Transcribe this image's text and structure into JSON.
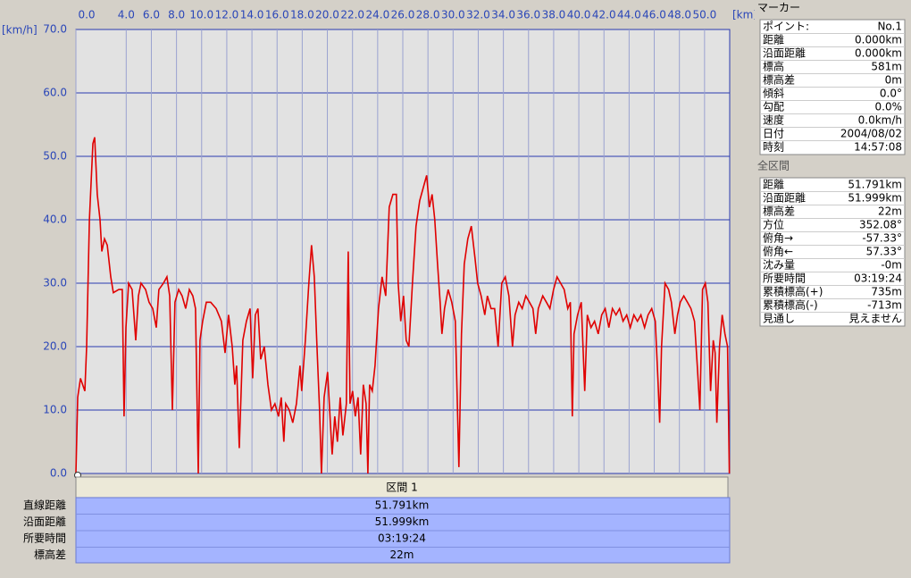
{
  "chart_data": {
    "type": "line",
    "x_label": "[km]",
    "y_label": "[km/h]",
    "color": "#e00000",
    "xlim": [
      0,
      52
    ],
    "ylim": [
      0,
      70
    ],
    "grid": true,
    "xticks": [
      {
        "value": 0,
        "label": "0.0"
      },
      {
        "value": 4,
        "label": "4.0"
      },
      {
        "value": 6,
        "label": "6.0"
      },
      {
        "value": 8,
        "label": "8.0"
      },
      {
        "value": 10,
        "label": "10.0"
      },
      {
        "value": 12,
        "label": "12.0"
      },
      {
        "value": 14,
        "label": "14.0"
      },
      {
        "value": 16,
        "label": "16.0"
      },
      {
        "value": 18,
        "label": "18.0"
      },
      {
        "value": 20,
        "label": "20.0"
      },
      {
        "value": 22,
        "label": "22.0"
      },
      {
        "value": 24,
        "label": "24.0"
      },
      {
        "value": 26,
        "label": "26.0"
      },
      {
        "value": 28,
        "label": "28.0"
      },
      {
        "value": 30,
        "label": "30.0"
      },
      {
        "value": 32,
        "label": "32.0"
      },
      {
        "value": 34,
        "label": "34.0"
      },
      {
        "value": 36,
        "label": "36.0"
      },
      {
        "value": 38,
        "label": "38.0"
      },
      {
        "value": 40,
        "label": "40.0"
      },
      {
        "value": 42,
        "label": "42.0"
      },
      {
        "value": 44,
        "label": "44.0"
      },
      {
        "value": 46,
        "label": "46.0"
      },
      {
        "value": 48,
        "label": "48.0"
      },
      {
        "value": 50,
        "label": "50.0"
      }
    ],
    "yticks": [
      {
        "value": 0,
        "label": "0.0"
      },
      {
        "value": 10,
        "label": "10.0"
      },
      {
        "value": 20,
        "label": "20.0"
      },
      {
        "value": 30,
        "label": "30.0"
      },
      {
        "value": 40,
        "label": "40.0"
      },
      {
        "value": 50,
        "label": "50.0"
      },
      {
        "value": 60,
        "label": "60.0"
      },
      {
        "value": 70,
        "label": "70.0"
      }
    ],
    "x": [
      0,
      0.14,
      0.36,
      0.71,
      0.85,
      1.07,
      1.35,
      1.49,
      1.7,
      1.92,
      2.06,
      2.27,
      2.49,
      2.77,
      2.98,
      3.41,
      3.69,
      3.83,
      3.98,
      4.19,
      4.47,
      4.76,
      4.97,
      5.18,
      5.54,
      5.82,
      6.11,
      6.39,
      6.6,
      6.96,
      7.24,
      7.46,
      7.67,
      7.88,
      8.17,
      8.45,
      8.73,
      9.02,
      9.3,
      9.51,
      9.73,
      9.87,
      10.08,
      10.37,
      10.72,
      11.15,
      11.57,
      11.86,
      12.14,
      12.43,
      12.64,
      12.78,
      12.99,
      13.28,
      13.56,
      13.85,
      14.06,
      14.27,
      14.48,
      14.7,
      14.98,
      15.27,
      15.55,
      15.83,
      16.12,
      16.33,
      16.54,
      16.69,
      16.97,
      17.25,
      17.54,
      17.82,
      17.96,
      18.25,
      18.53,
      18.74,
      18.96,
      19.17,
      19.38,
      19.53,
      19.74,
      20.02,
      20.24,
      20.38,
      20.59,
      20.8,
      21.02,
      21.23,
      21.51,
      21.66,
      21.8,
      22.01,
      22.22,
      22.44,
      22.65,
      22.86,
      23.08,
      23.22,
      23.36,
      23.57,
      23.79,
      24.07,
      24.35,
      24.64,
      24.92,
      25.21,
      25.49,
      25.63,
      25.84,
      26.06,
      26.27,
      26.48,
      26.77,
      27.05,
      27.34,
      27.62,
      27.9,
      28.12,
      28.33,
      28.54,
      28.76,
      28.97,
      29.11,
      29.32,
      29.61,
      29.89,
      30.18,
      30.46,
      30.67,
      30.89,
      31.17,
      31.45,
      31.74,
      31.95,
      32.23,
      32.52,
      32.73,
      33.02,
      33.3,
      33.58,
      33.87,
      34.15,
      34.44,
      34.72,
      34.93,
      35.22,
      35.5,
      35.78,
      36.07,
      36.35,
      36.57,
      36.78,
      37.13,
      37.42,
      37.7,
      37.99,
      38.27,
      38.55,
      38.84,
      39.12,
      39.33,
      39.48,
      39.62,
      39.9,
      40.19,
      40.47,
      40.68,
      40.97,
      41.25,
      41.54,
      41.82,
      42.1,
      42.39,
      42.67,
      42.96,
      43.24,
      43.52,
      43.81,
      44.09,
      44.38,
      44.66,
      44.94,
      45.23,
      45.51,
      45.8,
      46.08,
      46.29,
      46.43,
      46.58,
      46.86,
      47.14,
      47.36,
      47.64,
      47.85,
      48.07,
      48.35,
      48.64,
      48.92,
      49.2,
      49.42,
      49.63,
      49.84,
      50.06,
      50.27,
      50.48,
      50.69,
      50.84,
      50.98,
      51.19,
      51.4,
      51.62,
      51.83,
      51.97
    ],
    "values": [
      0,
      12,
      15,
      13,
      20,
      40,
      52,
      53,
      44,
      40,
      35,
      37,
      36,
      31,
      28.5,
      29,
      29,
      9,
      23,
      30,
      29,
      21,
      28,
      30,
      29,
      27,
      26,
      23,
      29,
      30,
      31,
      28,
      10,
      27,
      29,
      28,
      26,
      29,
      28,
      26,
      0,
      21,
      24,
      27,
      27,
      26,
      24,
      19,
      25,
      20,
      14,
      17,
      4,
      21,
      24,
      26,
      15,
      25,
      26,
      18,
      20,
      14,
      10,
      11,
      9,
      12,
      5,
      11,
      10,
      8,
      11,
      17,
      13,
      21,
      30,
      36,
      31,
      20,
      10,
      0,
      12,
      16,
      8,
      3,
      9,
      5,
      12,
      6,
      11,
      35,
      11,
      13,
      9,
      12,
      3,
      14,
      11,
      0,
      14,
      13,
      17,
      26,
      31,
      28,
      42,
      44,
      44,
      30,
      24,
      28,
      21,
      20,
      30,
      39,
      43,
      45,
      47,
      42,
      44,
      40,
      33,
      27,
      22,
      26,
      29,
      27,
      24,
      1,
      22,
      33,
      37,
      39,
      34,
      30,
      28,
      25,
      28,
      26,
      26,
      20,
      30,
      31,
      28,
      20,
      25,
      27,
      26,
      28,
      27,
      26,
      22,
      26,
      28,
      27,
      26,
      29,
      31,
      30,
      29,
      26,
      27,
      9,
      22,
      25,
      27,
      13,
      25,
      23,
      24,
      22,
      25,
      26,
      23,
      26,
      25,
      26,
      24,
      25,
      23,
      25,
      24,
      25,
      23,
      25,
      26,
      24,
      15,
      8,
      20,
      30,
      29,
      27,
      22,
      25,
      27,
      28,
      27,
      26,
      24,
      17,
      10,
      29,
      30,
      27,
      13,
      21,
      19,
      8,
      20,
      25,
      22,
      20,
      0
    ]
  },
  "section_table": {
    "header": "区間 1",
    "rows": [
      [
        "直線距離",
        "51.791km"
      ],
      [
        "沿面距離",
        "51.999km"
      ],
      [
        "所要時間",
        "03:19:24"
      ],
      [
        "標高差",
        "22m"
      ]
    ]
  },
  "marker_panel": {
    "title": "マーカー",
    "rows": [
      [
        "ポイント:",
        "No.1"
      ],
      [
        "距離",
        "0.000km"
      ],
      [
        "沿面距離",
        "0.000km"
      ],
      [
        "標高",
        "581m"
      ],
      [
        "標高差",
        "0m"
      ],
      [
        "傾斜",
        "0.0°"
      ],
      [
        "勾配",
        "0.0%"
      ],
      [
        "速度",
        "0.0km/h"
      ],
      [
        "日付",
        "2004/08/02"
      ],
      [
        "時刻",
        "14:57:08"
      ]
    ]
  },
  "total_panel": {
    "title": "全区間",
    "rows": [
      [
        "距離",
        "51.791km"
      ],
      [
        "沿面距離",
        "51.999km"
      ],
      [
        "標高差",
        "22m"
      ],
      [
        "方位",
        "352.08°"
      ],
      [
        "俯角→",
        "-57.33°"
      ],
      [
        "俯角←",
        "57.33°"
      ],
      [
        "沈み量",
        "-0m"
      ],
      [
        "所要時間",
        "03:19:24"
      ],
      [
        "累積標高(+)",
        "735m"
      ],
      [
        "累積標高(-)",
        "-713m"
      ],
      [
        "見通し",
        "見えません"
      ]
    ]
  }
}
